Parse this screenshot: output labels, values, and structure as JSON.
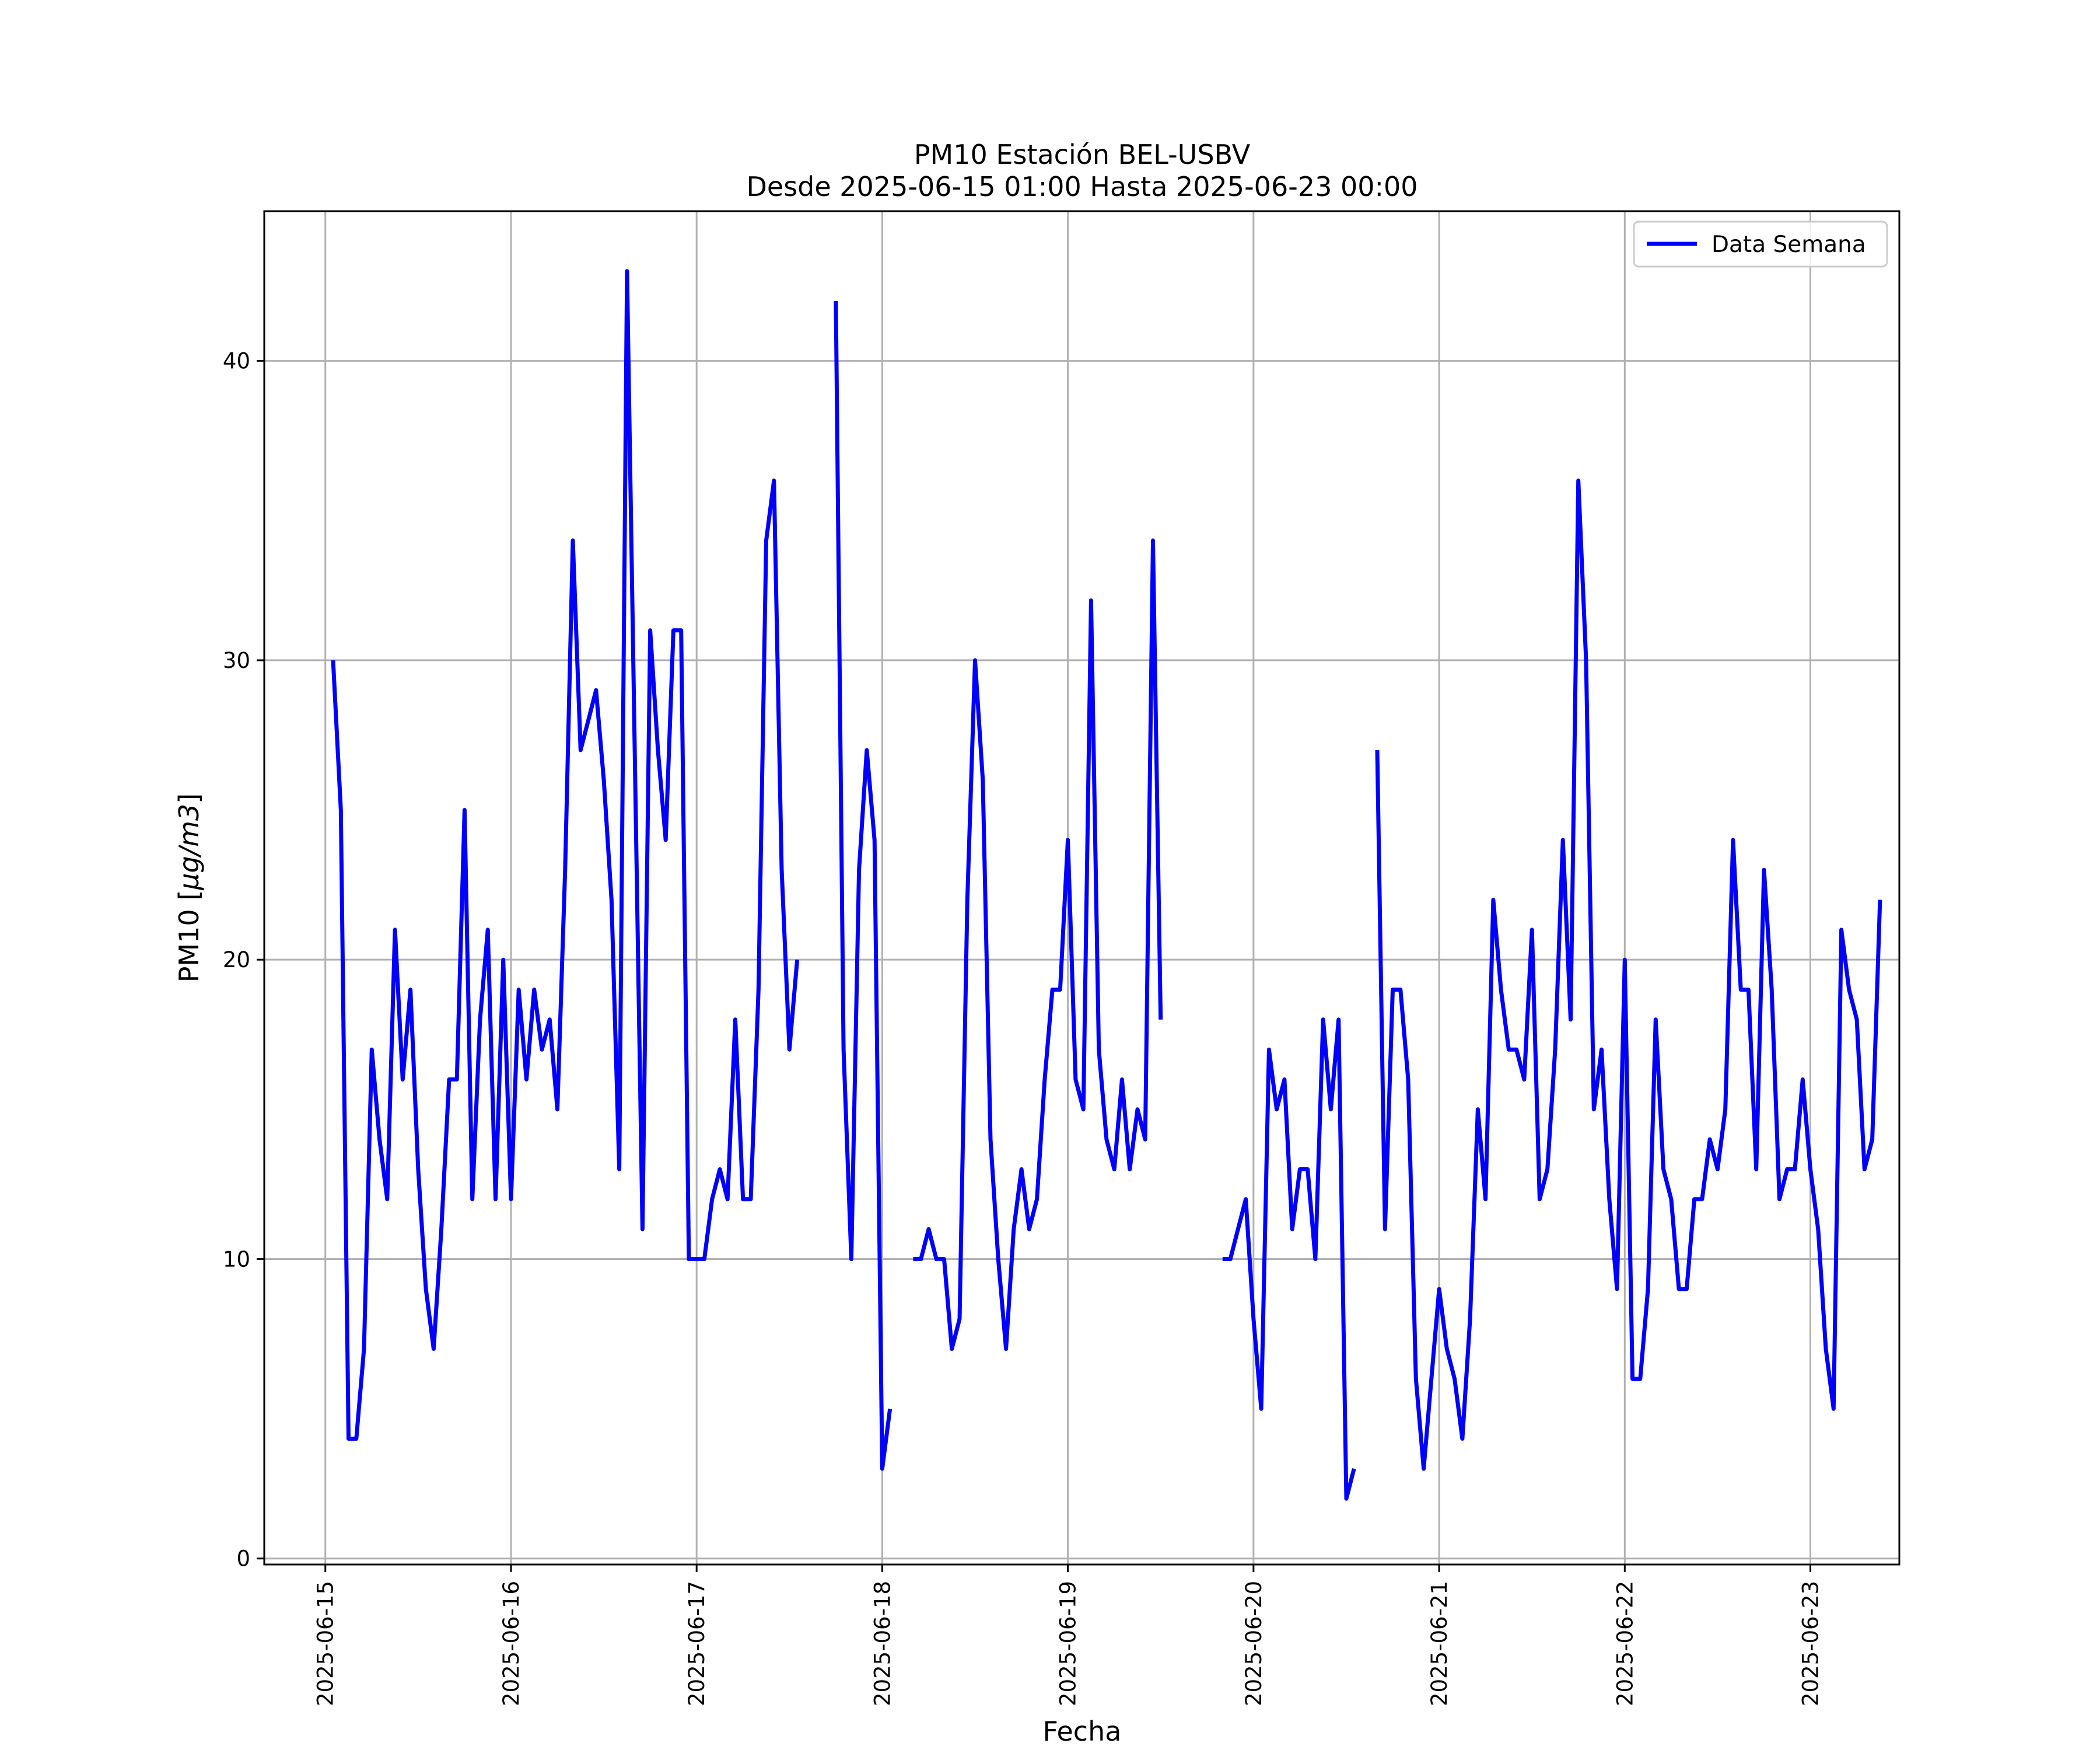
{
  "chart_data": {
    "type": "line",
    "title": "PM10 Estación BEL-USBV",
    "subtitle": "Desde 2025-06-15 01:00 Hasta 2025-06-23 00:00",
    "xlabel": "Fecha",
    "ylabel_prefix": "PM10 [",
    "ylabel_unit": "μg/m3",
    "ylabel_suffix": "]",
    "xlim": [
      "2025-06-14 16:06",
      "2025-06-23 11:30"
    ],
    "ylim": [
      -0.2,
      45
    ],
    "x_ticks": [
      "2025-06-15",
      "2025-06-16",
      "2025-06-17",
      "2025-06-18",
      "2025-06-19",
      "2025-06-20",
      "2025-06-21",
      "2025-06-22",
      "2025-06-23"
    ],
    "y_ticks": [
      0,
      10,
      20,
      30,
      40
    ],
    "grid": true,
    "legend_position": "top-right",
    "line_color": "#0000ff",
    "series": [
      {
        "name": "Data Semana",
        "start": "2025-06-15 01:00",
        "interval": "1h",
        "values": [
          30,
          25,
          4,
          4,
          7,
          17,
          14,
          12,
          21,
          16,
          19,
          13,
          9,
          7,
          11,
          16,
          16,
          25,
          12,
          18,
          21,
          12,
          20,
          12,
          19,
          16,
          19,
          17,
          18,
          15,
          23,
          34,
          27,
          28,
          29,
          26,
          22,
          13,
          43,
          27,
          11,
          31,
          27,
          24,
          31,
          31,
          10,
          10,
          10,
          12,
          13,
          12,
          18,
          12,
          12,
          19,
          34,
          36,
          23,
          17,
          20,
          null,
          null,
          null,
          null,
          42,
          17,
          10,
          23,
          27,
          24,
          3,
          5,
          null,
          null,
          10,
          10,
          11,
          10,
          10,
          7,
          8,
          22,
          30,
          26,
          14,
          10,
          7,
          11,
          13,
          11,
          12,
          16,
          19,
          19,
          24,
          16,
          15,
          32,
          17,
          14,
          13,
          16,
          13,
          15,
          14,
          34,
          18,
          null,
          null,
          null,
          null,
          null,
          null,
          null,
          10,
          10,
          11,
          12,
          8,
          5,
          17,
          15,
          16,
          11,
          13,
          13,
          10,
          18,
          15,
          18,
          2,
          3,
          null,
          null,
          27,
          11,
          19,
          19,
          16,
          6,
          3,
          6,
          9,
          7,
          6,
          4,
          8,
          15,
          12,
          22,
          19,
          17,
          17,
          16,
          21,
          12,
          13,
          17,
          24,
          18,
          36,
          30,
          15,
          17,
          12,
          9,
          20,
          6,
          6,
          9,
          18,
          13,
          12,
          9,
          9,
          12,
          12,
          14,
          13,
          15,
          24,
          19,
          19,
          13,
          23,
          19,
          12,
          13,
          13,
          16,
          13,
          11,
          7,
          5,
          21,
          19,
          18,
          13,
          14,
          22
        ]
      }
    ]
  }
}
